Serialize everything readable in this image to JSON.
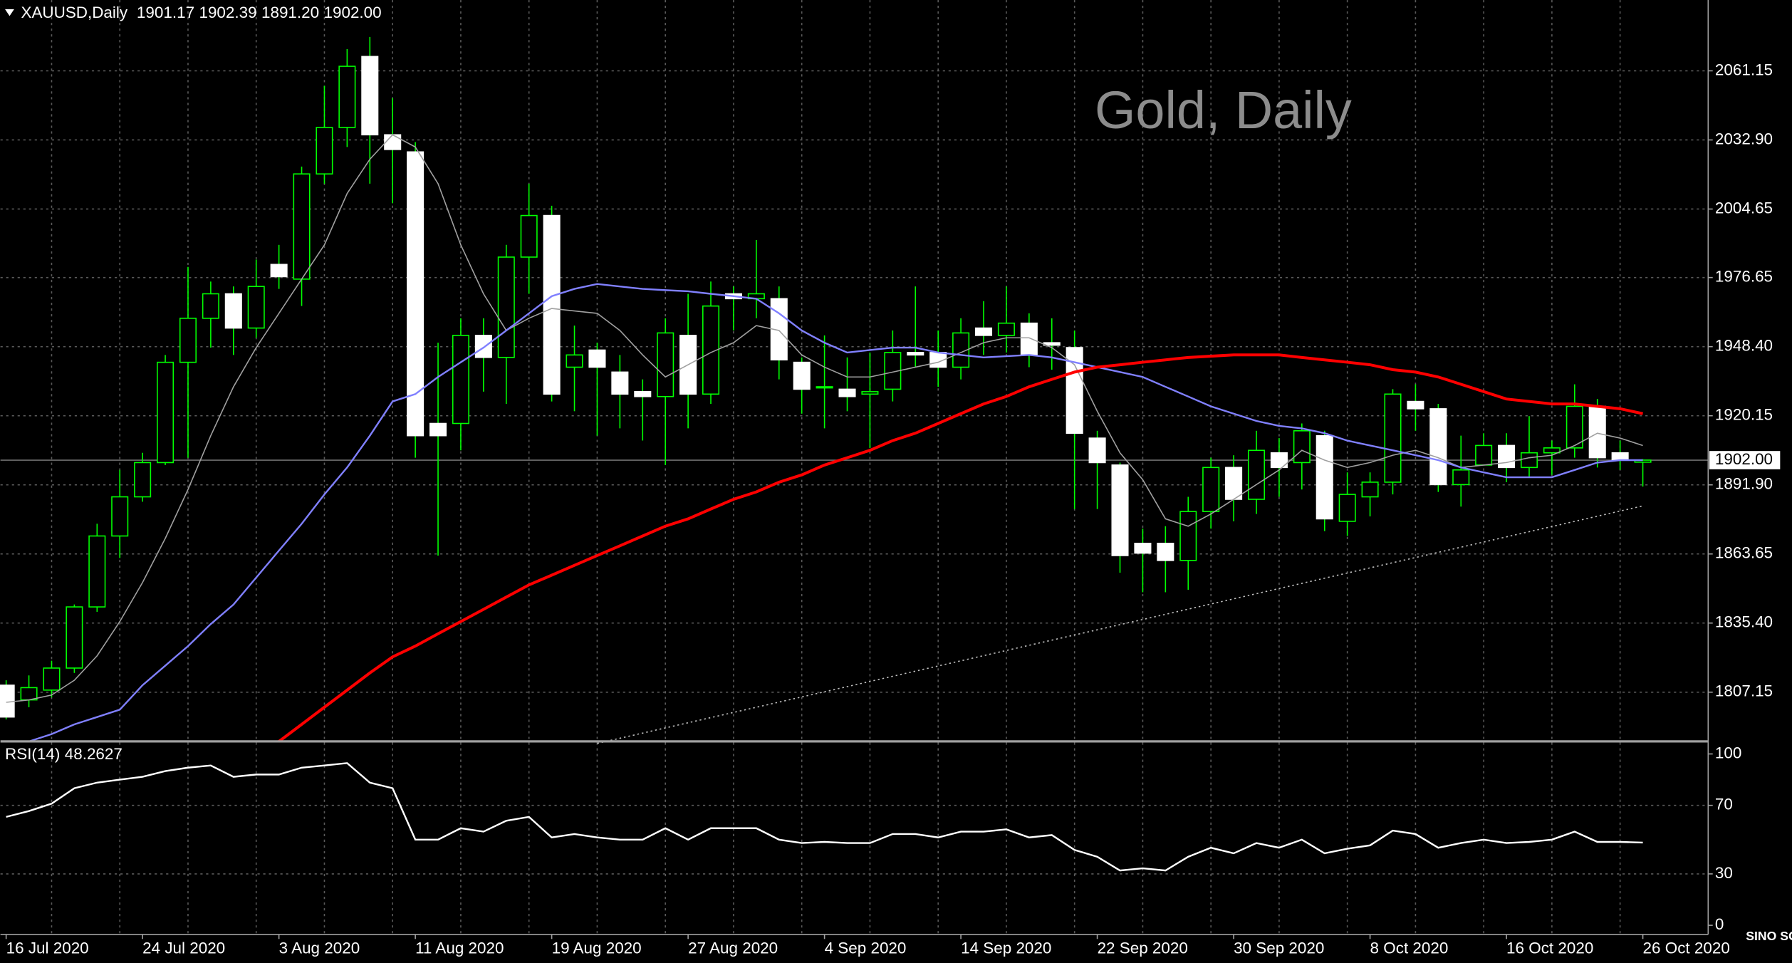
{
  "chart_data": {
    "type": "candlestick",
    "symbol": "XAUUSD,Daily",
    "header_values": [
      "1901.17",
      "1902.39",
      "1891.20",
      "1902.00"
    ],
    "title": "Gold, Daily",
    "watermark": "SINO SOUND",
    "categories": [
      "16 Jul 2020",
      null,
      null,
      null,
      null,
      null,
      "24 Jul 2020",
      null,
      null,
      null,
      null,
      null,
      "3 Aug 2020",
      null,
      null,
      null,
      null,
      null,
      "11 Aug 2020",
      null,
      null,
      null,
      null,
      null,
      "19 Aug 2020",
      null,
      null,
      null,
      null,
      null,
      "27 Aug 2020",
      null,
      null,
      null,
      null,
      null,
      "4 Sep 2020",
      null,
      null,
      null,
      null,
      null,
      "14 Sep 2020",
      null,
      null,
      null,
      null,
      null,
      "22 Sep 2020",
      null,
      null,
      null,
      null,
      null,
      "30 Sep 2020",
      null,
      null,
      null,
      null,
      null,
      "8 Oct 2020",
      null,
      null,
      null,
      null,
      null,
      "16 Oct 2020",
      null,
      null,
      null,
      null,
      null,
      "26 Oct 2020"
    ],
    "open": [
      1810,
      1804,
      1808,
      1817,
      1842,
      1871,
      1887,
      1901,
      1942,
      1960,
      1970,
      1956,
      1982,
      1976,
      2019,
      2038,
      2067,
      2035,
      2028,
      1917,
      1917,
      1953,
      1944,
      1985,
      2002,
      1940,
      1947,
      1938,
      1930,
      1928,
      1953,
      1929,
      1970,
      1968,
      1968,
      1942,
      1932,
      1931,
      1929,
      1931,
      1946,
      1946,
      1940,
      1956,
      1953,
      1958,
      1950,
      1948,
      1911,
      1900,
      1868,
      1868,
      1861,
      1881,
      1899,
      1886,
      1905,
      1901,
      1912,
      1877,
      1887,
      1893,
      1926,
      1923,
      1892,
      1900,
      1908,
      1899,
      1905,
      1907,
      1924,
      1905,
      1901.17
    ],
    "high": [
      1812,
      1814,
      1820,
      1843,
      1876,
      1898,
      1905,
      1945,
      1981,
      1975,
      1973,
      1984,
      1990,
      2022,
      2055,
      2070,
      2075,
      2050,
      2032,
      1950,
      1960,
      1960,
      1990,
      2015,
      2006,
      1957,
      1950,
      1945,
      1935,
      1960,
      1970,
      1975,
      1973,
      1992,
      1973,
      1944,
      1953,
      1944,
      1946,
      1955,
      1973,
      1955,
      1960,
      1967,
      1973,
      1962,
      1960,
      1955,
      1914,
      1901,
      1874,
      1875,
      1887,
      1903,
      1904,
      1914,
      1911,
      1917,
      1914,
      1897,
      1897,
      1931,
      1933,
      1925,
      1912,
      1913,
      1913,
      1920,
      1910,
      1933,
      1927,
      1910,
      1902.39
    ],
    "low": [
      1796,
      1801,
      1805,
      1815,
      1840,
      1862,
      1885,
      1900,
      1903,
      1948,
      1945,
      1952,
      1972,
      1965,
      2015,
      2030,
      2015,
      2007,
      1903,
      1863,
      1906,
      1930,
      1925,
      1970,
      1926,
      1922,
      1912,
      1915,
      1910,
      1900,
      1915,
      1925,
      1955,
      1960,
      1935,
      1921,
      1915,
      1922,
      1907,
      1926,
      1940,
      1932,
      1935,
      1945,
      1946,
      1940,
      1939,
      1882,
      1882,
      1856,
      1848,
      1848,
      1849,
      1874,
      1877,
      1880,
      1887,
      1890,
      1873,
      1871,
      1879,
      1888,
      1914,
      1889,
      1883,
      1900,
      1893,
      1895,
      1896,
      1903,
      1899,
      1898,
      1891.2
    ],
    "close": [
      1797,
      1809,
      1817,
      1842,
      1871,
      1887,
      1901,
      1942,
      1960,
      1970,
      1956,
      1973,
      1977,
      2019,
      2038,
      2063,
      2035,
      2029,
      1912,
      1912,
      1953,
      1944,
      1985,
      2002,
      1929,
      1945,
      1940,
      1929,
      1928,
      1954,
      1929,
      1965,
      1968,
      1970,
      1943,
      1931,
      1932,
      1928,
      1930,
      1946,
      1945,
      1940,
      1954,
      1953,
      1958,
      1945,
      1949,
      1913,
      1901,
      1863,
      1864,
      1861,
      1881,
      1899,
      1886,
      1906,
      1899,
      1914,
      1878,
      1888,
      1893,
      1929,
      1923,
      1892,
      1898,
      1908,
      1899,
      1905,
      1907,
      1924,
      1903,
      1902,
      1902
    ],
    "bull_color": "#00ff00",
    "bear_color": "#ffffff",
    "overlays": [
      {
        "color": "#a0a0a0",
        "width": 1,
        "values": [
          1803,
          1804,
          1806,
          1812,
          1822,
          1836,
          1852,
          1870,
          1890,
          1912,
          1932,
          1948,
          1962,
          1976,
          1990,
          2011,
          2025,
          2035,
          2030,
          2015,
          1990,
          1970,
          1955,
          1960,
          1964,
          1963,
          1962,
          1955,
          1945,
          1936,
          1941,
          1946,
          1950,
          1957,
          1955,
          1945,
          1940,
          1936,
          1936,
          1938,
          1940,
          1942,
          1946,
          1950,
          1952,
          1952,
          1948,
          1941,
          1922,
          1905,
          1894,
          1878,
          1875,
          1880,
          1886,
          1892,
          1898,
          1906,
          1902,
          1899,
          1901,
          1904,
          1906,
          1903,
          1899,
          1900,
          1901,
          1903,
          1904,
          1908,
          1913,
          1911,
          1908
        ]
      },
      {
        "color": "#8080ff",
        "width": 1.5,
        "values": [
          null,
          1787,
          1790,
          1794,
          1797,
          1800,
          1810,
          1818,
          1826,
          1835,
          1843,
          1854,
          1865,
          1876,
          1888,
          1899,
          1912,
          1926,
          1929,
          1936,
          1942,
          1948,
          1955,
          1962,
          1969,
          1972,
          1974,
          1973,
          1972,
          1971.5,
          1971,
          1970,
          1969,
          1968,
          1962,
          1955,
          1950,
          1946,
          1947,
          1948,
          1948,
          1946,
          1945,
          1944,
          1944.5,
          1945,
          1944,
          1942,
          1940,
          1938,
          1936,
          1932,
          1928,
          1924,
          1921,
          1918,
          1916,
          1915,
          1913,
          1910,
          1908,
          1906,
          1904,
          1902,
          1899,
          1897,
          1895,
          1895,
          1895,
          1898,
          1901,
          1902,
          1902
        ]
      },
      {
        "color": "#ff0000",
        "width": 2.5,
        "values": [
          null,
          null,
          null,
          null,
          null,
          null,
          null,
          null,
          null,
          null,
          null,
          null,
          1787,
          1794,
          1801,
          1808,
          1815,
          1821.6,
          1826,
          1831,
          1836,
          1841,
          1846,
          1851,
          1855,
          1859,
          1863,
          1867,
          1871,
          1875,
          1878,
          1882,
          1886,
          1889,
          1893,
          1896,
          1900,
          1903,
          1906,
          1910,
          1913,
          1917,
          1921,
          1925,
          1928,
          1932,
          1935,
          1938,
          1940,
          1941,
          1942,
          1943,
          1944,
          1944.5,
          1945,
          1945,
          1945,
          1944,
          1943,
          1942,
          1941,
          1939,
          1938,
          1936,
          1933,
          1930,
          1927,
          1926,
          1925,
          1925,
          1924,
          1923,
          1921
        ]
      }
    ],
    "trendline": {
      "x": [
        26,
        72
      ],
      "values": [
        1786.2,
        1883.3
      ],
      "color": "#c0c0c0"
    },
    "current_price": {
      "value": 1902,
      "label": "1902.00"
    },
    "ylim": [
      1787.5,
      2090.1
    ],
    "yticks": [
      2061.15,
      {
        "value": 2032.9,
        "label": "2032.90"
      },
      2004.65,
      1976.65,
      {
        "value": 1948.4,
        "label": "1948.40"
      },
      1920.15,
      {
        "value": 1891.9,
        "label": "1891.90"
      },
      1863.65,
      {
        "value": 1835.4,
        "label": "1835.40"
      },
      1807.15
    ],
    "grid": true,
    "rsi": {
      "label": "RSI(14)",
      "color": "#ffffff",
      "ylim": [
        -5.33,
        106
      ],
      "yticks": [
        100,
        70,
        30,
        0
      ],
      "values": [
        63.3,
        66.7,
        71,
        80,
        83.3,
        85,
        86.7,
        90,
        92,
        93.3,
        86.7,
        88,
        88,
        92,
        93.3,
        94.7,
        83.3,
        80,
        50,
        50,
        56.7,
        54.7,
        61,
        63.3,
        51.3,
        53.3,
        51.3,
        50,
        50,
        56.7,
        50,
        56.7,
        56.7,
        56.7,
        50,
        48,
        48.7,
        48,
        48,
        53.3,
        53.3,
        51.3,
        54.7,
        54.7,
        56,
        51.3,
        52.7,
        44,
        40,
        32,
        33.3,
        32,
        40,
        45.3,
        42,
        48,
        45.3,
        50,
        42,
        44.7,
        46.7,
        55.3,
        53.3,
        45.3,
        48,
        50,
        48,
        48.7,
        50,
        54.7,
        48.7,
        48.7,
        48.2627
      ]
    }
  }
}
